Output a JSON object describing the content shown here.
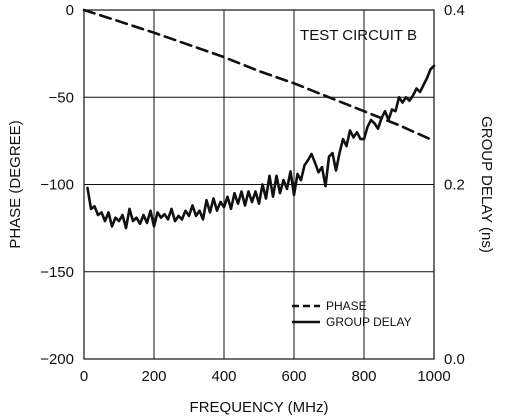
{
  "chart_data": {
    "type": "line",
    "title": "",
    "annotation": "TEST CIRCUIT B",
    "xlabel": "FREQUENCY (MHz)",
    "ylabel_left": "PHASE (DEGREE)",
    "ylabel_right": "GROUP DELAY (ns)",
    "xlim": [
      0,
      1000
    ],
    "ylim_left": [
      -200,
      0
    ],
    "ylim_right": [
      0,
      0.4
    ],
    "x_ticks": [
      0,
      200,
      400,
      600,
      800,
      1000
    ],
    "x_tick_labels": [
      "0",
      "200",
      "400",
      "600",
      "800",
      "1000"
    ],
    "y_left_ticks": [
      0,
      -50,
      -100,
      -150,
      -200
    ],
    "y_left_tick_labels": [
      "0",
      "−50",
      "−100",
      "−150",
      "−200"
    ],
    "y_right_ticks": [
      0.4,
      0.2,
      0.0
    ],
    "y_right_tick_labels": [
      "0.4",
      "0.2",
      "0.0"
    ],
    "grid": true,
    "legend_position": "bottom-right",
    "series": [
      {
        "name": "PHASE",
        "axis": "left",
        "style": "dashed",
        "color": "#111111",
        "x": [
          0,
          100,
          200,
          300,
          400,
          500,
          600,
          700,
          800,
          900,
          1000
        ],
        "y": [
          0,
          -6.5,
          -13,
          -20,
          -27,
          -35,
          -42,
          -50,
          -58,
          -66,
          -75
        ]
      },
      {
        "name": "GROUP DELAY",
        "axis": "right",
        "style": "solid",
        "color": "#111111",
        "x": [
          10,
          20,
          30,
          40,
          50,
          60,
          70,
          80,
          90,
          100,
          110,
          120,
          130,
          140,
          150,
          160,
          170,
          180,
          190,
          200,
          210,
          220,
          230,
          240,
          250,
          260,
          270,
          280,
          290,
          300,
          310,
          320,
          330,
          340,
          350,
          360,
          370,
          380,
          390,
          400,
          410,
          420,
          430,
          440,
          450,
          460,
          470,
          480,
          490,
          500,
          510,
          520,
          530,
          540,
          550,
          560,
          570,
          580,
          590,
          600,
          610,
          620,
          630,
          640,
          650,
          660,
          670,
          680,
          690,
          700,
          710,
          720,
          730,
          740,
          750,
          760,
          770,
          780,
          790,
          800,
          810,
          820,
          830,
          840,
          850,
          860,
          870,
          880,
          890,
          900,
          910,
          920,
          930,
          940,
          950,
          960,
          970,
          980,
          990,
          1000
        ],
        "y": [
          0.196,
          0.172,
          0.175,
          0.165,
          0.168,
          0.158,
          0.168,
          0.152,
          0.162,
          0.158,
          0.165,
          0.15,
          0.172,
          0.158,
          0.162,
          0.155,
          0.165,
          0.156,
          0.17,
          0.152,
          0.168,
          0.162,
          0.166,
          0.16,
          0.172,
          0.158,
          0.164,
          0.16,
          0.17,
          0.164,
          0.176,
          0.164,
          0.17,
          0.16,
          0.182,
          0.168,
          0.184,
          0.17,
          0.18,
          0.174,
          0.186,
          0.172,
          0.19,
          0.178,
          0.192,
          0.176,
          0.192,
          0.18,
          0.192,
          0.178,
          0.2,
          0.184,
          0.21,
          0.186,
          0.21,
          0.19,
          0.205,
          0.195,
          0.215,
          0.188,
          0.212,
          0.205,
          0.222,
          0.228,
          0.235,
          0.225,
          0.214,
          0.22,
          0.198,
          0.232,
          0.236,
          0.216,
          0.236,
          0.252,
          0.244,
          0.262,
          0.254,
          0.26,
          0.252,
          0.252,
          0.266,
          0.274,
          0.27,
          0.264,
          0.276,
          0.284,
          0.274,
          0.286,
          0.284,
          0.3,
          0.294,
          0.3,
          0.296,
          0.302,
          0.31,
          0.306,
          0.314,
          0.322,
          0.332,
          0.336
        ]
      }
    ]
  }
}
